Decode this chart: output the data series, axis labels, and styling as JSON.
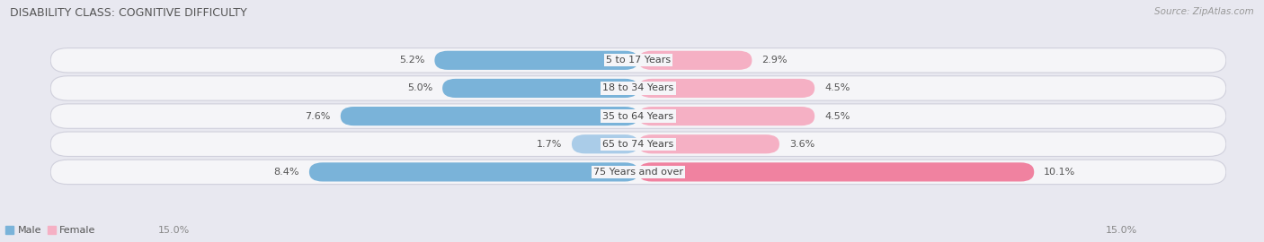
{
  "title": "DISABILITY CLASS: COGNITIVE DIFFICULTY",
  "source": "Source: ZipAtlas.com",
  "categories": [
    "5 to 17 Years",
    "18 to 34 Years",
    "35 to 64 Years",
    "65 to 74 Years",
    "75 Years and over"
  ],
  "male_values": [
    5.2,
    5.0,
    7.6,
    1.7,
    8.4
  ],
  "female_values": [
    2.9,
    4.5,
    4.5,
    3.6,
    10.1
  ],
  "max_val": 15.0,
  "male_color_normal": "#7ab3d9",
  "male_color_light": "#aacce8",
  "female_color_normal": "#f082a0",
  "female_color_light": "#f5b0c4",
  "bg_color": "#e8e8f0",
  "row_bg_color": "#f5f5f8",
  "row_edge_color": "#d0d0dc",
  "title_fontsize": 9,
  "label_fontsize": 8,
  "tick_fontsize": 8,
  "source_fontsize": 7.5,
  "x_left_label": "15.0%",
  "x_right_label": "15.0%",
  "legend_labels": [
    "Male",
    "Female"
  ]
}
